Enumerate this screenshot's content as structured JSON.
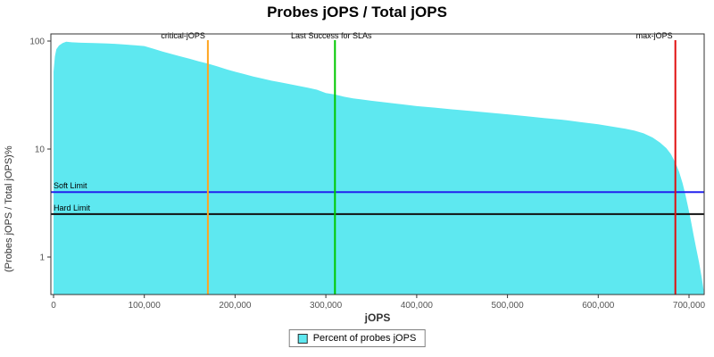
{
  "chart_data": {
    "type": "area",
    "title": "Probes jOPS / Total jOPS",
    "xlabel": "jOPS",
    "ylabel": "(Probes jOPS / Total jOPS)%",
    "x_scale": "linear",
    "y_scale": "log",
    "xlim": [
      0,
      716000
    ],
    "ylim": [
      0.45,
      130
    ],
    "grid": false,
    "x_ticks": [
      0,
      100000,
      200000,
      300000,
      400000,
      500000,
      600000,
      700000
    ],
    "x_tick_labels": [
      "0",
      "100,000",
      "200,000",
      "300,000",
      "400,000",
      "500,000",
      "600,000",
      "700,000"
    ],
    "y_ticks": [
      1,
      10,
      100
    ],
    "y_tick_labels": [
      "1",
      "10",
      "100"
    ],
    "series": [
      {
        "name": "Percent of probes jOPS",
        "type": "area",
        "color": "#5EE8F0",
        "points": [
          [
            0,
            52
          ],
          [
            1500,
            72
          ],
          [
            3000,
            84
          ],
          [
            6000,
            91
          ],
          [
            10000,
            96
          ],
          [
            14000,
            98.5
          ],
          [
            20000,
            97.5
          ],
          [
            30000,
            96.5
          ],
          [
            45000,
            96
          ],
          [
            60000,
            95
          ],
          [
            75000,
            93.5
          ],
          [
            90000,
            91.5
          ],
          [
            100000,
            90
          ],
          [
            110000,
            85
          ],
          [
            120000,
            80
          ],
          [
            130000,
            76
          ],
          [
            140000,
            72
          ],
          [
            150000,
            68.5
          ],
          [
            160000,
            65
          ],
          [
            170000,
            62
          ],
          [
            180000,
            58.5
          ],
          [
            190000,
            55
          ],
          [
            200000,
            52
          ],
          [
            210000,
            49.5
          ],
          [
            220000,
            47
          ],
          [
            230000,
            45
          ],
          [
            240000,
            43
          ],
          [
            250000,
            41.5
          ],
          [
            260000,
            40
          ],
          [
            270000,
            38.5
          ],
          [
            280000,
            37
          ],
          [
            290000,
            35.5
          ],
          [
            300000,
            33
          ],
          [
            310000,
            32
          ],
          [
            320000,
            30.5
          ],
          [
            330000,
            29.5
          ],
          [
            340000,
            28.8
          ],
          [
            350000,
            28
          ],
          [
            370000,
            26.8
          ],
          [
            390000,
            25.6
          ],
          [
            400000,
            25
          ],
          [
            420000,
            24.2
          ],
          [
            440000,
            23.3
          ],
          [
            460000,
            22.5
          ],
          [
            480000,
            21.7
          ],
          [
            500000,
            21
          ],
          [
            520000,
            20.2
          ],
          [
            540000,
            19.4
          ],
          [
            560000,
            18.7
          ],
          [
            580000,
            17.8
          ],
          [
            600000,
            17
          ],
          [
            615000,
            16.2
          ],
          [
            630000,
            15.4
          ],
          [
            640000,
            14.8
          ],
          [
            650000,
            14
          ],
          [
            660000,
            12.8
          ],
          [
            668000,
            11.5
          ],
          [
            675000,
            10.2
          ],
          [
            680000,
            9
          ],
          [
            685000,
            7.5
          ],
          [
            689000,
            6.2
          ],
          [
            693000,
            4.8
          ],
          [
            696000,
            3.8
          ],
          [
            699000,
            2.9
          ],
          [
            702000,
            2.2
          ],
          [
            705000,
            1.6
          ],
          [
            708000,
            1.2
          ],
          [
            711000,
            0.9
          ],
          [
            714000,
            0.65
          ],
          [
            716000,
            0.5
          ]
        ]
      }
    ],
    "vertical_markers": [
      {
        "label": "critical-jOPS",
        "x": 170000,
        "color": "#FFA420",
        "label_anchor": "end"
      },
      {
        "label": "Last Success for SLAs",
        "x": 310000,
        "color": "#00C800",
        "label_anchor": "middle"
      },
      {
        "label": "max-jOPS",
        "x": 685000,
        "color": "#E01010",
        "label_anchor": "end"
      }
    ],
    "horizontal_markers": [
      {
        "label": "Soft Limit",
        "y": 4,
        "color": "#2222EE"
      },
      {
        "label": "Hard Limit",
        "y": 2.5,
        "color": "#111111"
      }
    ],
    "legend": {
      "position": "bottom",
      "items": [
        {
          "label": "Percent of probes jOPS",
          "color": "#5EE8F0"
        }
      ]
    }
  }
}
